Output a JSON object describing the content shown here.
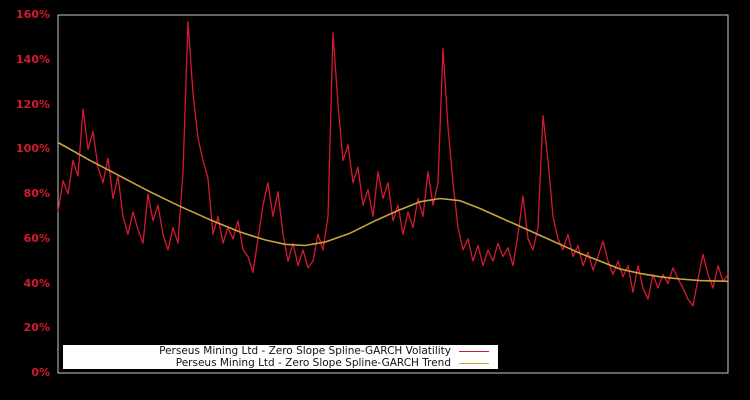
{
  "legend": {
    "rows": [
      {
        "label": "Perseus Mining Ltd - Zero Slope Spline-GARCH Volatility"
      },
      {
        "label": "Perseus Mining Ltd - Zero Slope Spline-GARCH Trend"
      }
    ]
  },
  "chart_data": {
    "type": "line",
    "title": "",
    "xlabel": "",
    "ylabel": "",
    "ylim": [
      0,
      160
    ],
    "grid": false,
    "legend_position": "lower-left",
    "background_color": "#000000",
    "border_color": "#c9c9c9",
    "axis_label_color": "#d41a30",
    "y_ticks": {
      "labels": [
        "0%",
        "20%",
        "40%",
        "60%",
        "80%",
        "100%",
        "120%",
        "140%",
        "160%"
      ],
      "values": [
        0,
        20,
        40,
        60,
        80,
        100,
        120,
        140,
        160
      ]
    },
    "series": [
      {
        "name": "Perseus Mining Ltd - Zero Slope Spline-GARCH Volatility",
        "color": "#d41a30",
        "unit": "%",
        "values": [
          72,
          86,
          80,
          95,
          88,
          118,
          100,
          108,
          92,
          85,
          96,
          78,
          88,
          70,
          62,
          72,
          64,
          58,
          80,
          68,
          75,
          62,
          55,
          65,
          58,
          90,
          157,
          125,
          105,
          95,
          87,
          62,
          70,
          58,
          65,
          60,
          68,
          55,
          52,
          45,
          60,
          75,
          85,
          70,
          81,
          62,
          50,
          58,
          48,
          55,
          47,
          50,
          62,
          55,
          70,
          152,
          120,
          95,
          102,
          85,
          92,
          75,
          82,
          70,
          90,
          78,
          85,
          68,
          75,
          62,
          72,
          65,
          78,
          70,
          90,
          75,
          85,
          145,
          110,
          85,
          65,
          55,
          60,
          50,
          57,
          48,
          55,
          50,
          58,
          52,
          56,
          48,
          62,
          79,
          60,
          55,
          65,
          115,
          95,
          70,
          60,
          55,
          62,
          52,
          57,
          48,
          54,
          46,
          52,
          59,
          50,
          44,
          50,
          43,
          48,
          36,
          48,
          38,
          33,
          44,
          38,
          44,
          40,
          47,
          42,
          38,
          33,
          30,
          42,
          53,
          44,
          38,
          48,
          41,
          44
        ]
      },
      {
        "name": "Perseus Mining Ltd - Zero Slope Spline-GARCH Trend",
        "color": "#c9a53e",
        "unit": "%",
        "x_frac": [
          0,
          0.0478,
          0.0925,
          0.1373,
          0.1821,
          0.2269,
          0.2716,
          0.309,
          0.3388,
          0.3687,
          0.3985,
          0.4358,
          0.4731,
          0.5104,
          0.5403,
          0.5701,
          0.6,
          0.6298,
          0.6597,
          0.6896,
          0.7194,
          0.7493,
          0.7791,
          0.809,
          0.8388,
          0.8687,
          0.8985,
          0.9284,
          0.9582,
          1.0
        ],
        "values": [
          103,
          95,
          88,
          81,
          74.5,
          68.5,
          63,
          59.5,
          57.5,
          57,
          58.5,
          62.5,
          68,
          73,
          76.5,
          78,
          77,
          73.5,
          69.5,
          65.5,
          61.5,
          57.5,
          53.5,
          50,
          46.5,
          44.5,
          43,
          42,
          41.3,
          41
        ]
      }
    ]
  }
}
